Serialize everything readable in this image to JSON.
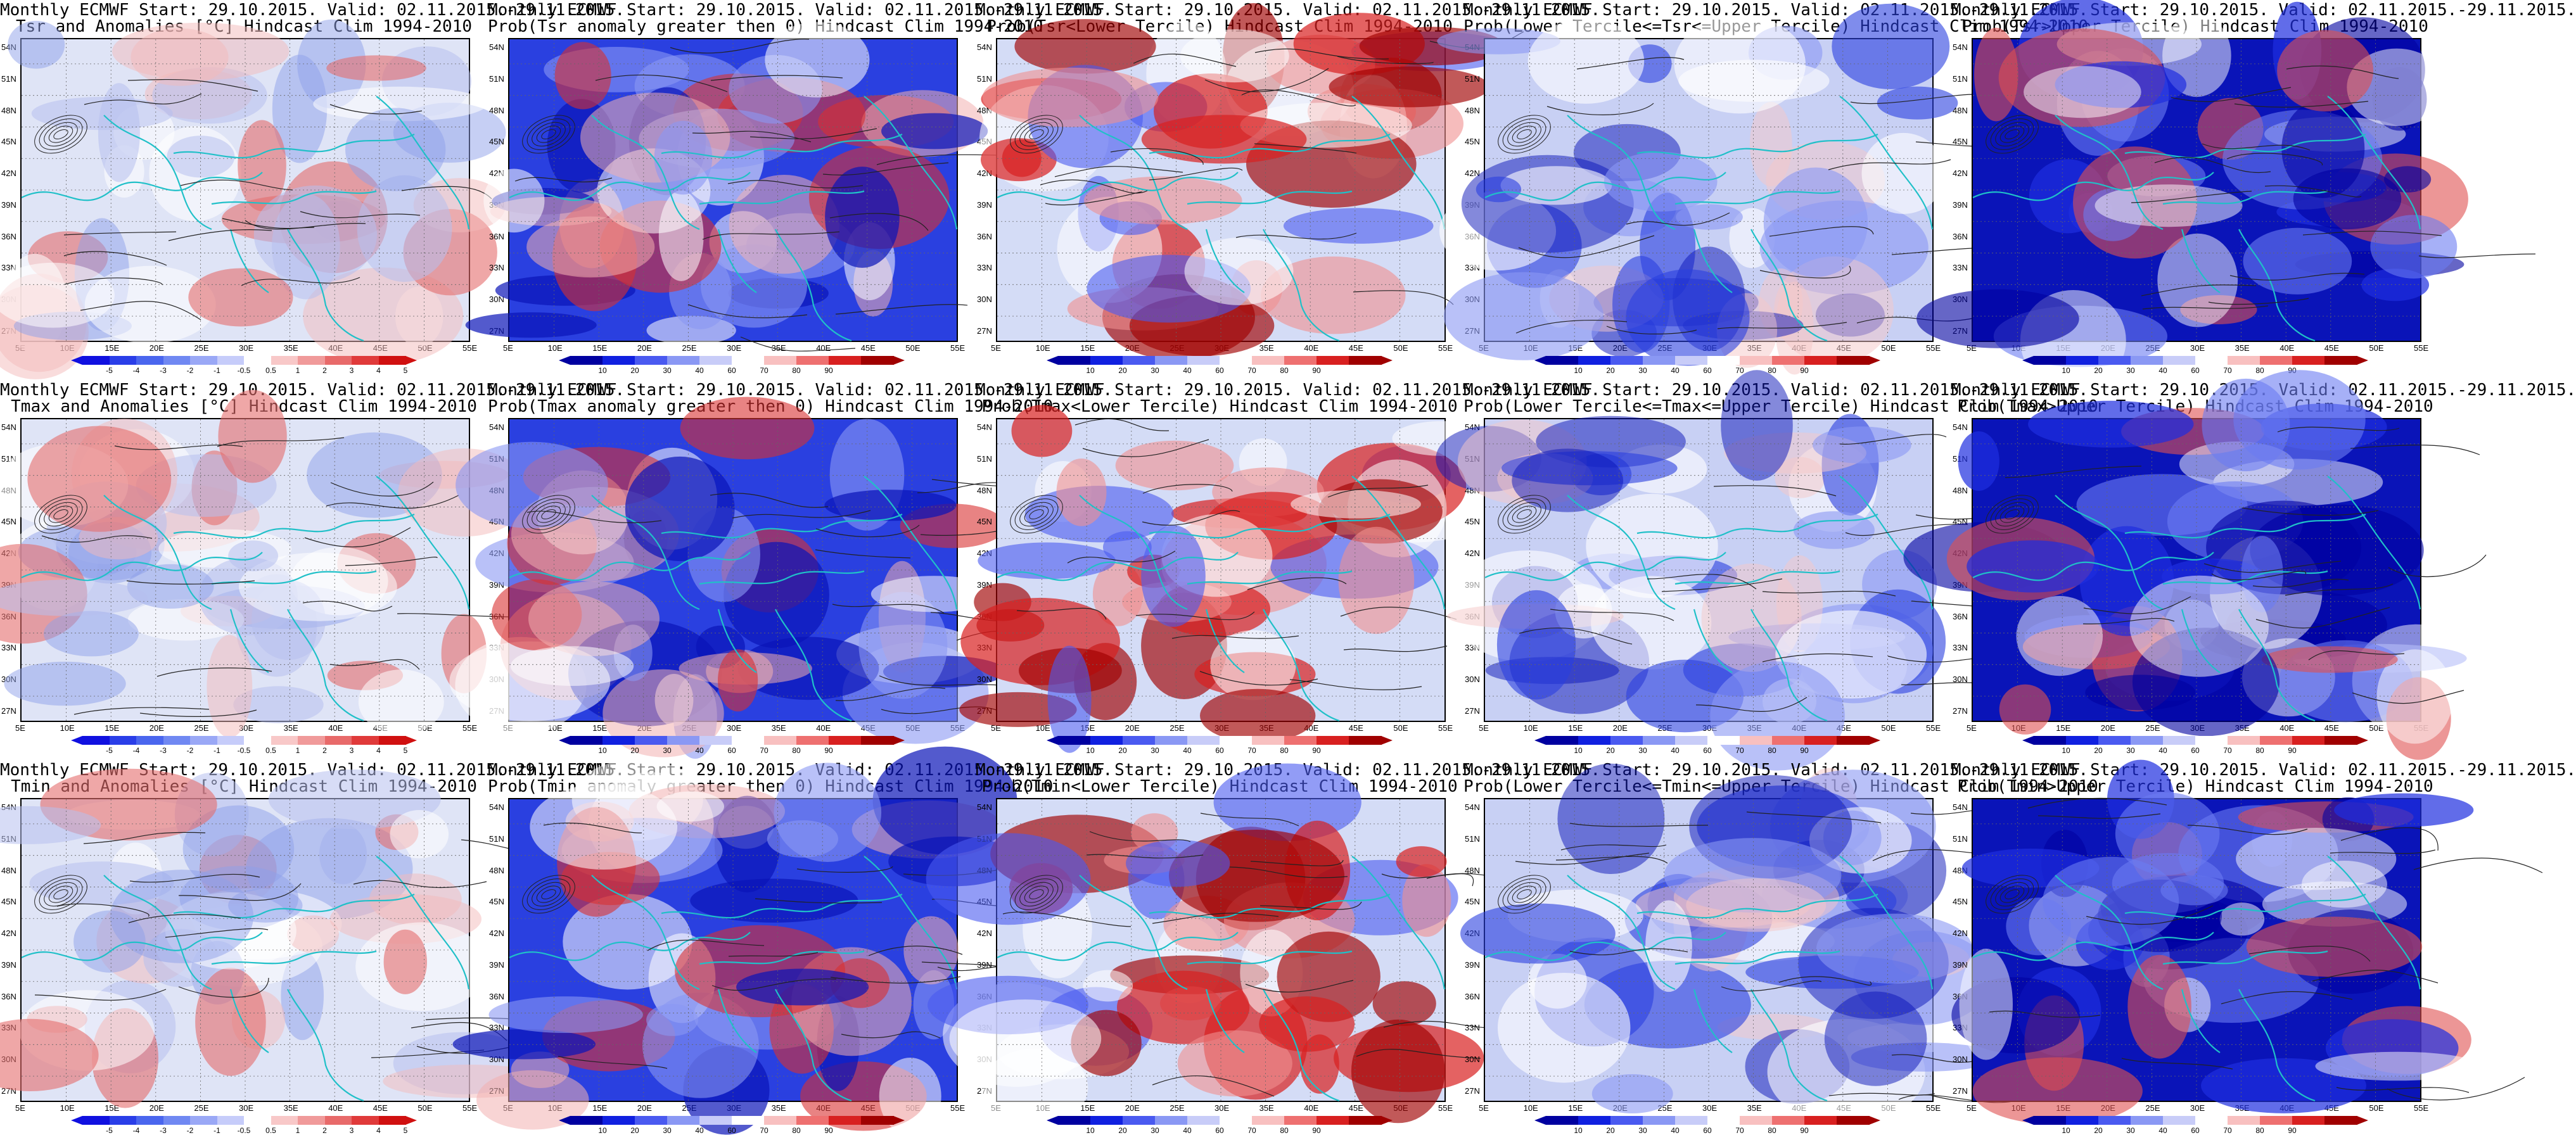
{
  "figure": {
    "lat_labels": [
      "54N",
      "51N",
      "48N",
      "45N",
      "42N",
      "39N",
      "36N",
      "33N",
      "30N",
      "27N"
    ],
    "lon_labels": [
      "5E",
      "10E",
      "15E",
      "20E",
      "25E",
      "30E",
      "35E",
      "40E",
      "45E",
      "50E",
      "55E"
    ],
    "colors": {
      "land_contour": "#222222",
      "coastline": "#20c0c8"
    }
  },
  "colorbars": {
    "anomaly": {
      "labels": [
        "-5",
        "-4",
        "-3",
        "-2",
        "-1",
        "-0.5",
        "0.5",
        "1",
        "2",
        "3",
        "4",
        "5"
      ],
      "colors": [
        "#1010e0",
        "#2a3ee8",
        "#4a66ee",
        "#7088f2",
        "#9aa8f6",
        "#c6ccfa",
        "#ffffff",
        "#f8c8c8",
        "#f09a9a",
        "#e86a6a",
        "#e03a3a",
        "#d01010"
      ]
    },
    "probability": {
      "labels": [
        "10",
        "20",
        "30",
        "40",
        "60",
        "70",
        "80",
        "90"
      ],
      "colors": [
        "#0000a0",
        "#1020e0",
        "#4a5af0",
        "#8a98f4",
        "#c8ccf8",
        "#ffffff",
        "#f8c0c0",
        "#ee7070",
        "#d82020",
        "#a00000"
      ]
    }
  },
  "panels": [
    {
      "id": "tsr-anomaly",
      "line1": "Monthly ECMWF Start: 29.10.2015. Valid: 02.11.2015.-29.11.2015.",
      "line2": "Tsr and Anomalies [°C] Hindcast Clim 1994-2010",
      "scale": "anomaly",
      "tone": "neutral"
    },
    {
      "id": "tsr-prob-pos",
      "line1": "Monthly ECMWF Start: 29.10.2015. Valid: 02.11.2015.-29.11.2015.",
      "line2": "Prob(Tsr anomaly greater then 0) Hindcast Clim 1994-2010",
      "scale": "probability",
      "tone": "blue"
    },
    {
      "id": "tsr-prob-lower",
      "line1": "Monthly ECMWF Start: 29.10.2015. Valid: 02.11.2015.-29.11.2015.",
      "line2": "Prob(Tsr<Lower Tercile) Hindcast Clim 1994-2010",
      "scale": "probability",
      "tone": "red"
    },
    {
      "id": "tsr-prob-middle",
      "line1": "Monthly ECMWF Start: 29.10.2015. Valid: 02.11.2015.-29.11.2015.",
      "line2": "Prob(Lower Tercile<=Tsr<=Upper Tercile) Hindcast Clim 1994-2010",
      "scale": "probability",
      "tone": "light"
    },
    {
      "id": "tsr-prob-upper",
      "line1": "Monthly ECMWF Start: 29.10.2015. Valid: 02.11.2015.-29.11.2015.",
      "line2": "Prob(Tsr>Upper Tercile) Hindcast Clim 1994-2010",
      "scale": "probability",
      "tone": "deep"
    },
    {
      "id": "tmax-anomaly",
      "line1": "Monthly ECMWF Start: 29.10.2015. Valid: 02.11.2015.-29.11.2015.",
      "line2": "Tmax and Anomalies [°C] Hindcast Clim 1994-2010",
      "scale": "anomaly",
      "tone": "neutral"
    },
    {
      "id": "tmax-prob-pos",
      "line1": "Monthly ECMWF Start: 29.10.2015. Valid: 02.11.2015.-29.11.2015.",
      "line2": "Prob(Tmax anomaly greater then 0) Hindcast Clim 1994-2010",
      "scale": "probability",
      "tone": "blue"
    },
    {
      "id": "tmax-prob-lower",
      "line1": "Monthly ECMWF Start: 29.10.2015. Valid: 02.11.2015.-29.11.2015.",
      "line2": "Prob(Tmax<Lower Tercile) Hindcast Clim 1994-2010",
      "scale": "probability",
      "tone": "red"
    },
    {
      "id": "tmax-prob-middle",
      "line1": "Monthly ECMWF Start: 29.10.2015. Valid: 02.11.2015.-29.11.2015.",
      "line2": "Prob(Lower Tercile<=Tmax<=Upper Tercile) Hindcast Clim 1994-2010",
      "scale": "probability",
      "tone": "light"
    },
    {
      "id": "tmax-prob-upper",
      "line1": "Monthly ECMWF Start: 29.10.2015. Valid: 02.11.2015.-29.11.2015.",
      "line2": "Prob(Tmax>Upper Tercile) Hindcast Clim 1994-2010",
      "scale": "probability",
      "tone": "deep"
    },
    {
      "id": "tmin-anomaly",
      "line1": "Monthly ECMWF Start: 29.10.2015. Valid: 02.11.2015.-29.11.2015.",
      "line2": "Tmin and Anomalies [°C] Hindcast Clim 1994-2010",
      "scale": "anomaly",
      "tone": "neutral"
    },
    {
      "id": "tmin-prob-pos",
      "line1": "Monthly ECMWF Start: 29.10.2015. Valid: 02.11.2015.-29.11.2015.",
      "line2": "Prob(Tmin anomaly greater then 0) Hindcast Clim 1994-2010",
      "scale": "probability",
      "tone": "blue"
    },
    {
      "id": "tmin-prob-lower",
      "line1": "Monthly ECMWF Start: 29.10.2015. Valid: 02.11.2015.-29.11.2015.",
      "line2": "Prob(Tmin<Lower Tercile) Hindcast Clim 1994-2010",
      "scale": "probability",
      "tone": "red"
    },
    {
      "id": "tmin-prob-middle",
      "line1": "Monthly ECMWF Start: 29.10.2015. Valid: 02.11.2015.-29.11.2015.",
      "line2": "Prob(Lower Tercile<=Tmin<=Upper Tercile) Hindcast Clim 1994-2010",
      "scale": "probability",
      "tone": "light"
    },
    {
      "id": "tmin-prob-upper",
      "line1": "Monthly ECMWF Start: 29.10.2015. Valid: 02.11.2015.-29.11.2015.",
      "line2": "Prob(Tmin>Upper Tercile) Hindcast Clim 1994-2010",
      "scale": "probability",
      "tone": "deep"
    }
  ]
}
